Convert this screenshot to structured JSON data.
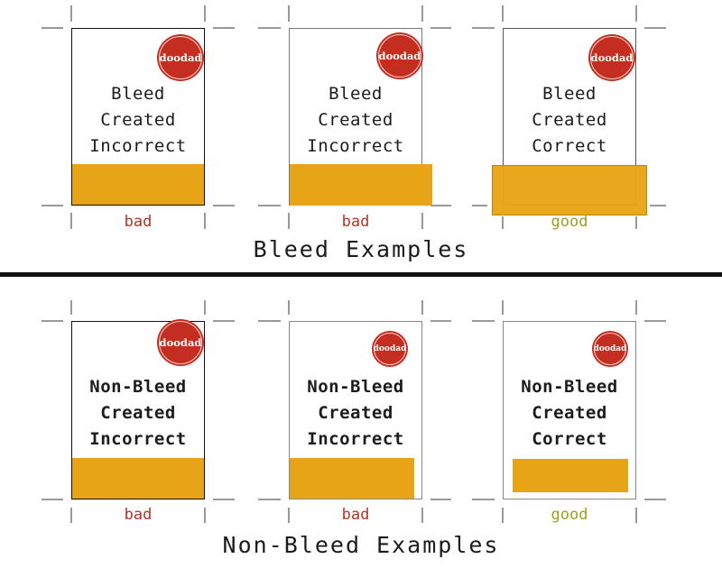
{
  "colors": {
    "brand_red": "#c42e20",
    "bar_orange": "#e8a417",
    "bad_red": "#b83228",
    "good_olive": "#9aa020",
    "ink": "#1c1c1c"
  },
  "brand": {
    "logo_text": "doodad"
  },
  "bleed_section": {
    "title": "Bleed Examples",
    "examples": [
      {
        "lines": [
          "Bleed",
          "Created",
          "Incorrect"
        ],
        "verdict": "bad"
      },
      {
        "lines": [
          "Bleed",
          "Created",
          "Incorrect"
        ],
        "verdict": "bad"
      },
      {
        "lines": [
          "Bleed",
          "Created",
          "Correct"
        ],
        "verdict": "good"
      }
    ]
  },
  "non_bleed_section": {
    "title": "Non-Bleed Examples",
    "examples": [
      {
        "lines": [
          "Non-Bleed",
          "Created",
          "Incorrect"
        ],
        "verdict": "bad"
      },
      {
        "lines": [
          "Non-Bleed",
          "Created",
          "Incorrect"
        ],
        "verdict": "bad"
      },
      {
        "lines": [
          "Non-Bleed",
          "Created",
          "Correct"
        ],
        "verdict": "good"
      }
    ]
  }
}
